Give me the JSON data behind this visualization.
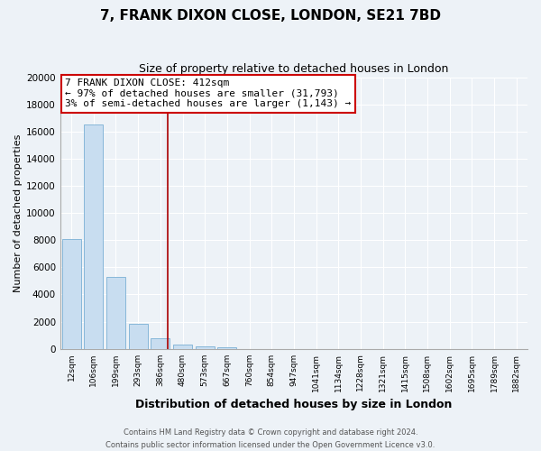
{
  "title": "7, FRANK DIXON CLOSE, LONDON, SE21 7BD",
  "subtitle": "Size of property relative to detached houses in London",
  "xlabel": "Distribution of detached houses by size in London",
  "ylabel": "Number of detached properties",
  "bar_labels": [
    "12sqm",
    "106sqm",
    "199sqm",
    "293sqm",
    "386sqm",
    "480sqm",
    "573sqm",
    "667sqm",
    "760sqm",
    "854sqm",
    "947sqm",
    "1041sqm",
    "1134sqm",
    "1228sqm",
    "1321sqm",
    "1415sqm",
    "1508sqm",
    "1602sqm",
    "1695sqm",
    "1789sqm",
    "1882sqm"
  ],
  "bar_values": [
    8100,
    16500,
    5300,
    1850,
    800,
    300,
    175,
    100,
    0,
    0,
    0,
    0,
    0,
    0,
    0,
    0,
    0,
    0,
    0,
    0,
    0
  ],
  "bar_color": "#c8ddf0",
  "bar_edge_color": "#7aafd4",
  "vline_x_index": 4.35,
  "vline_color": "#aa0000",
  "annotation_title": "7 FRANK DIXON CLOSE: 412sqm",
  "annotation_line1": "← 97% of detached houses are smaller (31,793)",
  "annotation_line2": "3% of semi-detached houses are larger (1,143) →",
  "annotation_box_facecolor": "#ffffff",
  "annotation_box_edgecolor": "#cc0000",
  "ylim": [
    0,
    20000
  ],
  "yticks": [
    0,
    2000,
    4000,
    6000,
    8000,
    10000,
    12000,
    14000,
    16000,
    18000,
    20000
  ],
  "footer_line1": "Contains HM Land Registry data © Crown copyright and database right 2024.",
  "footer_line2": "Contains public sector information licensed under the Open Government Licence v3.0.",
  "bg_color": "#edf2f7",
  "grid_color": "#ffffff",
  "title_fontsize": 11,
  "subtitle_fontsize": 9
}
